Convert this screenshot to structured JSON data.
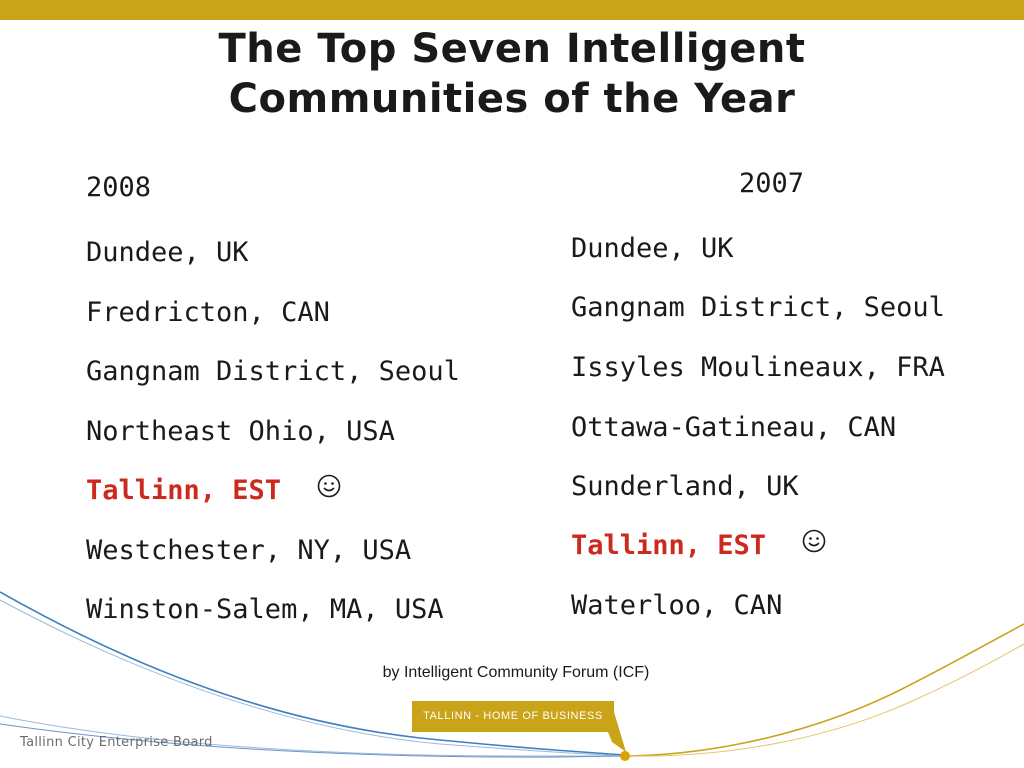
{
  "slide": {
    "title_line1": "The Top Seven Intelligent",
    "title_line2": "Communities of the Year",
    "col2008": {
      "heading": "2008",
      "items": [
        "Dundee, UK",
        "Fredricton, CAN",
        "Gangnam District, Seoul",
        "Northeast Ohio, USA",
        "Tallinn, EST",
        "Westchester, NY, USA",
        "Winston-Salem, MA, USA"
      ]
    },
    "col2007": {
      "heading": "2007",
      "items": [
        "Dundee, UK",
        "Gangnam District, Seoul",
        "Issyles Moulineaux, FRA",
        "Ottawa-Gatineau, CAN",
        "Sunderland, UK",
        "Tallinn, EST",
        "Waterloo, CAN"
      ]
    },
    "credit": "by Intelligent Community Forum (ICF)"
  },
  "footer": {
    "badge": "TALLINN - HOME OF BUSINESS",
    "board": "Tallinn City Enterprise Board"
  },
  "colors": {
    "accent_gold": "#c9a318",
    "highlight_red": "#cc2a1e",
    "line_blue": "#3f7fbf"
  },
  "icons": {
    "smiley": "smiley-face-icon"
  }
}
